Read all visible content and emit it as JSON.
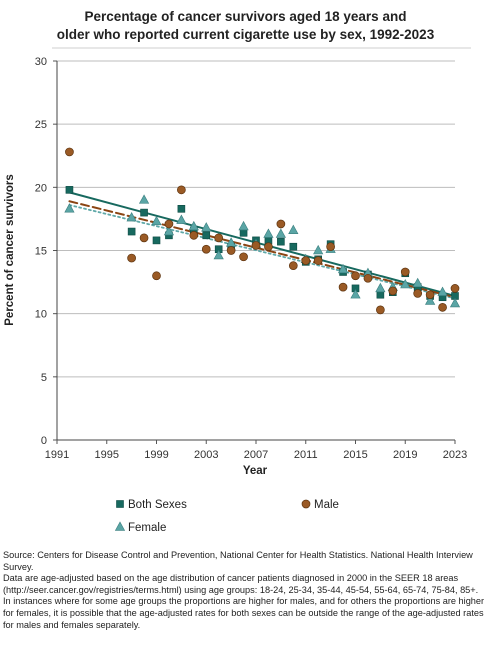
{
  "chart_data": {
    "type": "scatter",
    "title_lines": [
      "Percentage of cancer survivors aged 18 years and",
      "older who reported current cigarette use by sex, 1992-2023"
    ],
    "xlabel": "Year",
    "ylabel": "Percent of cancer survivors",
    "xlim": [
      1991,
      2023
    ],
    "ylim": [
      0,
      30
    ],
    "xticks": [
      1991,
      1995,
      1999,
      2003,
      2007,
      2011,
      2015,
      2019,
      2023
    ],
    "yticks": [
      0,
      5,
      10,
      15,
      20,
      25,
      30
    ],
    "grid": "horizontal",
    "legend_position": "bottom",
    "colors": {
      "both": "#17695f",
      "female": "#5fa8a8",
      "male": "#8b4513",
      "male_fill": "#9a5a25",
      "female_fill": "#5aa5a5",
      "grid": "#bdbdbd"
    },
    "series": [
      {
        "name": "Both Sexes",
        "marker": "square",
        "x": [
          1992,
          1997,
          1998,
          1999,
          2000,
          2001,
          2002,
          2003,
          2004,
          2005,
          2006,
          2007,
          2008,
          2009,
          2010,
          2011,
          2012,
          2013,
          2014,
          2015,
          2016,
          2017,
          2018,
          2019,
          2020,
          2021,
          2022,
          2023
        ],
        "y": [
          19.8,
          16.5,
          18.0,
          15.8,
          16.2,
          18.3,
          16.6,
          16.2,
          15.1,
          15.3,
          16.4,
          15.8,
          15.8,
          15.7,
          15.3,
          14.1,
          14.3,
          15.5,
          13.3,
          12.0,
          13.1,
          11.5,
          11.7,
          13.2,
          12.1,
          11.4,
          11.3,
          11.4
        ],
        "trend": [
          [
            1992,
            19.6
          ],
          [
            2023,
            11.4
          ]
        ]
      },
      {
        "name": "Female",
        "marker": "triangle",
        "x": [
          1992,
          1997,
          1998,
          1999,
          2000,
          2001,
          2002,
          2003,
          2004,
          2005,
          2006,
          2007,
          2008,
          2009,
          2010,
          2011,
          2012,
          2013,
          2014,
          2015,
          2016,
          2017,
          2018,
          2019,
          2020,
          2021,
          2022,
          2023
        ],
        "y": [
          18.3,
          17.6,
          19.0,
          17.3,
          16.5,
          17.4,
          16.9,
          16.8,
          14.6,
          15.6,
          16.9,
          15.5,
          16.3,
          16.3,
          16.6,
          14.3,
          15.0,
          15.1,
          13.5,
          11.5,
          13.2,
          12.0,
          12.1,
          12.3,
          12.4,
          11.0,
          11.7,
          10.8
        ],
        "trend": [
          [
            1992,
            18.6
          ],
          [
            2023,
            11.2
          ]
        ]
      },
      {
        "name": "Male",
        "marker": "circle",
        "x": [
          1992,
          1997,
          1998,
          1999,
          2000,
          2001,
          2002,
          2003,
          2004,
          2005,
          2006,
          2007,
          2008,
          2009,
          2010,
          2011,
          2012,
          2013,
          2014,
          2015,
          2016,
          2017,
          2018,
          2019,
          2020,
          2021,
          2022,
          2023
        ],
        "y": [
          22.8,
          14.4,
          16.0,
          13.0,
          17.1,
          19.8,
          16.2,
          15.1,
          16.0,
          15.0,
          14.5,
          15.4,
          15.3,
          17.1,
          13.8,
          14.2,
          14.2,
          15.3,
          12.1,
          13.0,
          12.8,
          10.3,
          11.8,
          13.3,
          11.6,
          11.5,
          10.5,
          12.0
        ],
        "trend": [
          [
            1992,
            18.9
          ],
          [
            2023,
            11.3
          ]
        ]
      }
    ],
    "legend": [
      {
        "label": "Both Sexes",
        "marker": "square"
      },
      {
        "label": "Male",
        "marker": "circle"
      },
      {
        "label": "Female",
        "marker": "triangle"
      }
    ],
    "source_lines": [
      "Source: Centers for Disease Control and Prevention, National Center for Health Statistics. National Health Interview Survey.",
      "Data are age-adjusted based on the age distribution of cancer patients diagnosed in 2000 in the SEER 18 areas (http://seer.cancer.gov/registries/terms.html) using age groups: 18-24, 25-34, 35-44, 45-54, 55-64, 65-74, 75-84, 85+.",
      "In instances where for some age groups the proportions are higher for males, and for others the proportions are higher for females, it is possible that the age-adjusted rates for both sexes can be outside the range of the age-adjusted rates for males and females separately."
    ]
  }
}
